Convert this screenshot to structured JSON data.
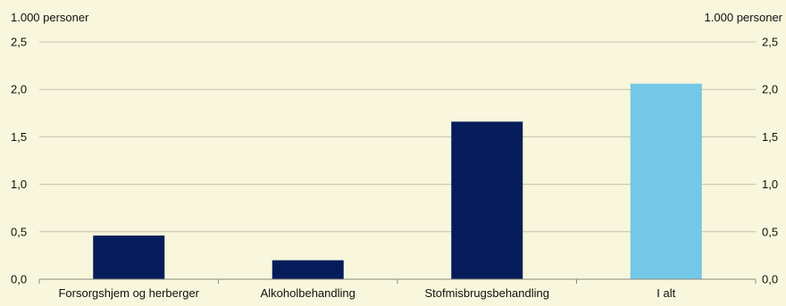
{
  "chart_data": {
    "type": "bar",
    "unit_left": "1.000 personer",
    "unit_right": "1.000 personer",
    "categories": [
      "Forsorgshjem og herberger",
      "Alkoholbehandling",
      "Stofmisbrugsbehandling",
      "I alt"
    ],
    "values": [
      0.46,
      0.2,
      1.66,
      2.06
    ],
    "bar_colors": [
      "#061c5a",
      "#061c5a",
      "#061c5a",
      "#74c7e6"
    ],
    "ylim": [
      0,
      2.5
    ],
    "yticks": [
      "0,0",
      "0,5",
      "1,0",
      "1,5",
      "2,0",
      "2,5"
    ],
    "grid": true,
    "legend": "none"
  }
}
